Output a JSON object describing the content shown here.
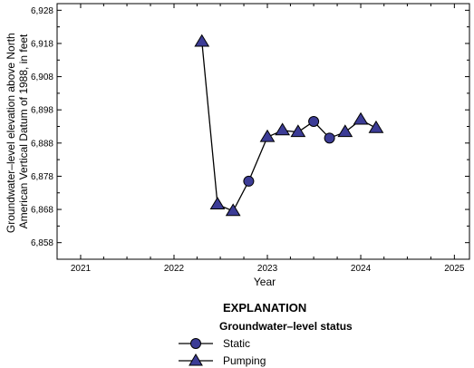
{
  "chart_data": {
    "type": "line",
    "xlabel": "Year",
    "ylabel_lines": [
      "Groundwater–level elevation above North",
      "American Vertical Datum of 1988, in feet"
    ],
    "x_ticks": [
      "2021",
      "2022",
      "2023",
      "2024",
      "2025"
    ],
    "y_ticks": [
      "6,858",
      "6,868",
      "6,878",
      "6,888",
      "6,898",
      "6,908",
      "6,918",
      "6,928"
    ],
    "xlim": [
      "2020-10-01",
      "2025-03-01"
    ],
    "ylim": [
      6853,
      6930
    ],
    "grid": false,
    "legend": {
      "title": "EXPLANATION",
      "subtitle": "Groundwater–level status",
      "entries": [
        "Static",
        "Pumping"
      ]
    },
    "colors": {
      "marker_fill": "#3c3c96",
      "line": "#000000"
    },
    "series": [
      {
        "points": [
          {
            "date": "2022-04-20",
            "value": 6918.5,
            "status": "Pumping"
          },
          {
            "date": "2022-06-20",
            "value": 6869.5,
            "status": "Pumping"
          },
          {
            "date": "2022-08-20",
            "value": 6867.5,
            "status": "Pumping"
          },
          {
            "date": "2022-10-20",
            "value": 6876.5,
            "status": "Static"
          },
          {
            "date": "2023-01-01",
            "value": 6889.8,
            "status": "Pumping"
          },
          {
            "date": "2023-03-01",
            "value": 6891.8,
            "status": "Pumping"
          },
          {
            "date": "2023-05-01",
            "value": 6891.3,
            "status": "Pumping"
          },
          {
            "date": "2023-07-01",
            "value": 6894.5,
            "status": "Static"
          },
          {
            "date": "2023-09-01",
            "value": 6889.5,
            "status": "Static"
          },
          {
            "date": "2023-11-01",
            "value": 6891.3,
            "status": "Pumping"
          },
          {
            "date": "2024-01-01",
            "value": 6895.0,
            "status": "Pumping"
          },
          {
            "date": "2024-03-01",
            "value": 6892.5,
            "status": "Pumping"
          }
        ]
      }
    ]
  }
}
